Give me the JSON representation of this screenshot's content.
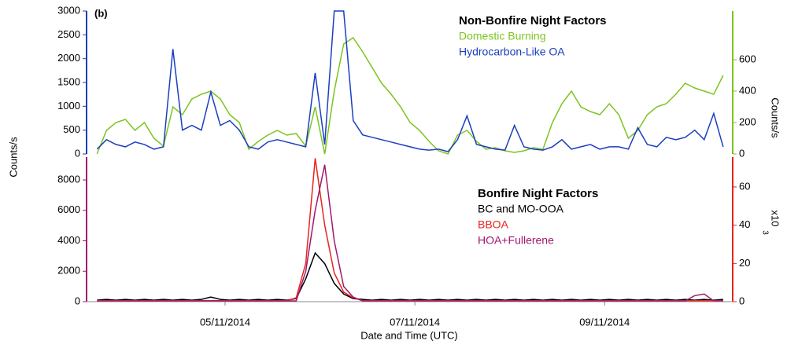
{
  "chart_data": [
    {
      "type": "line",
      "panel_label": "(b)",
      "legend_title": "Non-Bonfire Night Factors",
      "ylabel": "Counts/s",
      "y2label": "Counts/s",
      "ycolor": "#1b3fbf",
      "y2color": "#7dc41e",
      "xlim": [
        3.54,
        10.35
      ],
      "ylim": [
        0,
        3000
      ],
      "yticks": [
        0,
        500,
        1000,
        1500,
        2000,
        2500,
        3000
      ],
      "y2lim": [
        0,
        910
      ],
      "y2ticks": [
        0,
        200,
        400,
        600
      ],
      "x": [
        3.65,
        3.75,
        3.85,
        3.95,
        4.05,
        4.15,
        4.25,
        4.35,
        4.45,
        4.55,
        4.65,
        4.75,
        4.85,
        4.95,
        5.05,
        5.15,
        5.25,
        5.35,
        5.45,
        5.55,
        5.65,
        5.75,
        5.85,
        5.95,
        6.05,
        6.15,
        6.25,
        6.35,
        6.45,
        6.55,
        6.65,
        6.75,
        6.85,
        6.95,
        7.05,
        7.15,
        7.25,
        7.35,
        7.45,
        7.55,
        7.65,
        7.75,
        7.85,
        7.95,
        8.05,
        8.15,
        8.25,
        8.35,
        8.45,
        8.55,
        8.65,
        8.75,
        8.85,
        8.95,
        9.05,
        9.15,
        9.25,
        9.35,
        9.45,
        9.55,
        9.65,
        9.75,
        9.85,
        9.95,
        10.05,
        10.15,
        10.25
      ],
      "series": [
        {
          "name": "Domestic Burning",
          "color": "#7dc41e",
          "axis": "y2",
          "values": [
            0,
            150,
            200,
            220,
            150,
            200,
            100,
            50,
            300,
            250,
            350,
            380,
            400,
            350,
            250,
            200,
            30,
            80,
            120,
            150,
            120,
            130,
            50,
            300,
            0,
            400,
            700,
            740,
            650,
            550,
            450,
            380,
            300,
            200,
            150,
            80,
            20,
            0,
            120,
            150,
            80,
            30,
            40,
            20,
            10,
            20,
            40,
            30,
            200,
            320,
            400,
            300,
            270,
            250,
            320,
            250,
            100,
            150,
            250,
            300,
            320,
            380,
            450,
            420,
            400,
            380,
            500
          ]
        },
        {
          "name": "Hydrocarbon-Like OA",
          "color": "#1b3fbf",
          "values": [
            100,
            300,
            200,
            150,
            250,
            200,
            100,
            150,
            2200,
            500,
            600,
            500,
            1300,
            600,
            700,
            500,
            150,
            100,
            250,
            300,
            250,
            200,
            150,
            1700,
            200,
            3000,
            3000,
            700,
            400,
            350,
            300,
            250,
            200,
            150,
            100,
            80,
            100,
            50,
            300,
            800,
            200,
            150,
            100,
            80,
            600,
            150,
            100,
            80,
            150,
            300,
            100,
            150,
            200,
            100,
            150,
            150,
            100,
            550,
            200,
            150,
            350,
            300,
            350,
            500,
            300,
            850,
            150
          ]
        }
      ]
    },
    {
      "type": "line",
      "legend_title": "Bonfire Night Factors",
      "xlabel": "Date and Time (UTC)",
      "y2label": "x10",
      "y2label_exponent": "3",
      "ycolor": "#a0186e",
      "y2color": "#e8231f",
      "xlim": [
        3.54,
        10.35
      ],
      "xticks": [
        {
          "value": 5,
          "label": "05/11/2014"
        },
        {
          "value": 7,
          "label": "07/11/2014"
        },
        {
          "value": 9,
          "label": "09/11/2014"
        }
      ],
      "ylim": [
        0,
        9500
      ],
      "yticks": [
        0,
        2000,
        4000,
        6000,
        8000
      ],
      "y2lim": [
        0,
        75.6
      ],
      "y2ticks": [
        0,
        20,
        40,
        60
      ],
      "x": [
        3.65,
        3.75,
        3.85,
        3.95,
        4.05,
        4.15,
        4.25,
        4.35,
        4.45,
        4.55,
        4.65,
        4.75,
        4.85,
        4.95,
        5.05,
        5.15,
        5.25,
        5.35,
        5.45,
        5.55,
        5.65,
        5.75,
        5.85,
        5.95,
        6.05,
        6.15,
        6.25,
        6.35,
        6.45,
        6.55,
        6.65,
        6.75,
        6.85,
        6.95,
        7.05,
        7.15,
        7.25,
        7.35,
        7.45,
        7.55,
        7.65,
        7.75,
        7.85,
        7.95,
        8.05,
        8.15,
        8.25,
        8.35,
        8.45,
        8.55,
        8.65,
        8.75,
        8.85,
        8.95,
        9.05,
        9.15,
        9.25,
        9.35,
        9.45,
        9.55,
        9.65,
        9.75,
        9.85,
        9.95,
        10.05,
        10.15,
        10.25
      ],
      "series": [
        {
          "name": "BC and MO-OOA",
          "color": "#000000",
          "values": [
            100,
            150,
            100,
            150,
            100,
            150,
            100,
            150,
            100,
            150,
            100,
            150,
            300,
            150,
            100,
            150,
            100,
            150,
            100,
            150,
            100,
            200,
            1500,
            3200,
            2500,
            1200,
            500,
            200,
            150,
            100,
            150,
            100,
            150,
            100,
            150,
            100,
            150,
            100,
            150,
            100,
            150,
            100,
            150,
            100,
            150,
            100,
            150,
            100,
            150,
            100,
            150,
            100,
            150,
            100,
            150,
            100,
            150,
            100,
            150,
            100,
            150,
            100,
            150,
            100,
            150,
            100,
            150
          ]
        },
        {
          "name": "BBOA",
          "color": "#e8231f",
          "axis": "y2",
          "values": [
            0.5,
            0.5,
            0.5,
            0.5,
            0.5,
            0.5,
            0.5,
            0.5,
            0.5,
            0.5,
            0.5,
            0.5,
            0.5,
            0.5,
            0.5,
            0.5,
            0.5,
            0.5,
            0.5,
            0.5,
            0.5,
            2,
            20,
            75,
            40,
            15,
            5,
            2,
            0.5,
            0.5,
            0.5,
            0.5,
            0.5,
            0.5,
            0.5,
            0.5,
            0.5,
            0.5,
            0.5,
            0.5,
            0.5,
            0.5,
            0.5,
            0.5,
            0.5,
            0.5,
            0.5,
            0.5,
            0.5,
            0.5,
            0.5,
            0.5,
            0.5,
            0.5,
            0.5,
            0.5,
            0.5,
            0.5,
            0.5,
            0.5,
            0.5,
            0.5,
            0.5,
            0.5,
            0.5,
            0.5,
            0.5
          ]
        },
        {
          "name": "HOA+Fullerene",
          "color": "#a0186e",
          "values": [
            50,
            50,
            50,
            50,
            50,
            50,
            50,
            50,
            50,
            50,
            50,
            50,
            50,
            50,
            50,
            50,
            50,
            50,
            50,
            50,
            50,
            50,
            2000,
            6000,
            9000,
            4000,
            1000,
            300,
            50,
            50,
            50,
            50,
            50,
            50,
            50,
            50,
            50,
            50,
            50,
            50,
            50,
            50,
            50,
            50,
            50,
            50,
            50,
            50,
            50,
            50,
            50,
            50,
            50,
            50,
            50,
            50,
            50,
            50,
            50,
            50,
            50,
            50,
            50,
            400,
            500,
            50,
            50
          ]
        }
      ]
    }
  ]
}
